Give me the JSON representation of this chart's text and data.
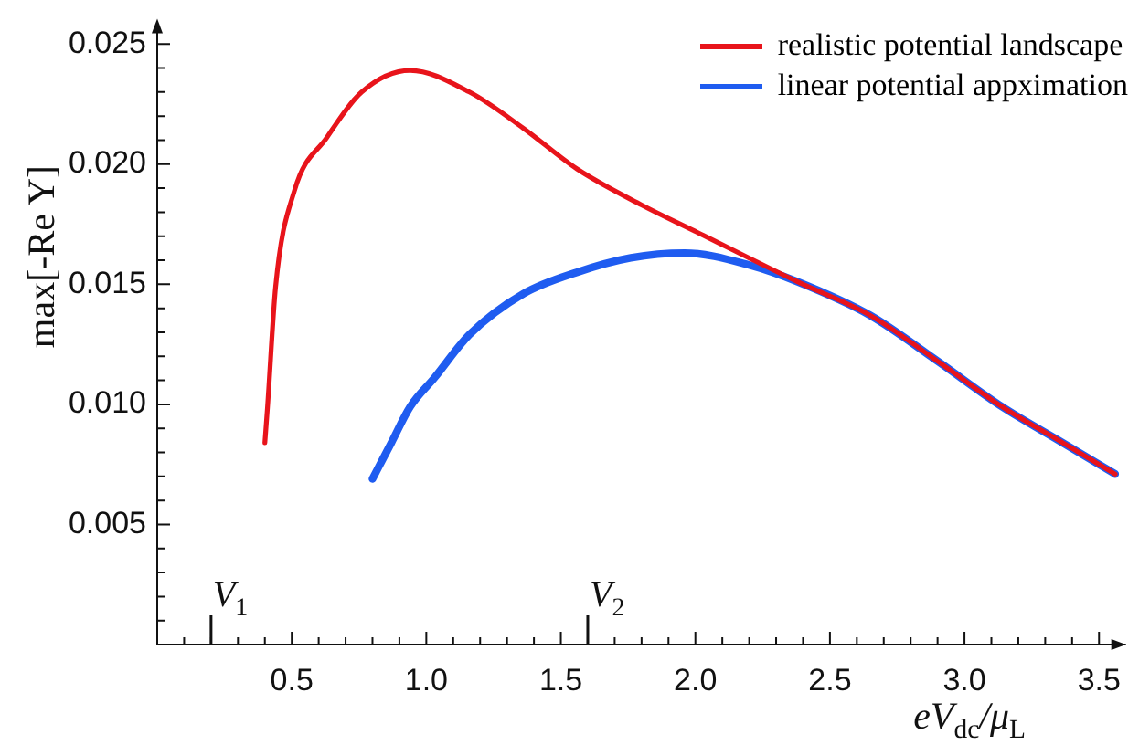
{
  "chart_data": {
    "type": "line",
    "xlabel": "eV$_{dc}$/μ$_{L}$",
    "ylabel": "max[-Re Y]",
    "xlim": [
      0,
      3.6
    ],
    "ylim": [
      0,
      0.0256
    ],
    "xticks": [
      {
        "value": 0.1,
        "label": null
      },
      {
        "value": 0.2,
        "label": null
      },
      {
        "value": 0.3,
        "label": null
      },
      {
        "value": 0.4,
        "label": null
      },
      {
        "value": 0.5,
        "label": "0.5"
      },
      {
        "value": 0.6,
        "label": null
      },
      {
        "value": 0.7,
        "label": null
      },
      {
        "value": 0.8,
        "label": null
      },
      {
        "value": 0.9,
        "label": null
      },
      {
        "value": 1.0,
        "label": "1.0"
      },
      {
        "value": 1.1,
        "label": null
      },
      {
        "value": 1.2,
        "label": null
      },
      {
        "value": 1.3,
        "label": null
      },
      {
        "value": 1.4,
        "label": null
      },
      {
        "value": 1.5,
        "label": "1.5"
      },
      {
        "value": 1.6,
        "label": null
      },
      {
        "value": 1.7,
        "label": null
      },
      {
        "value": 1.8,
        "label": null
      },
      {
        "value": 1.9,
        "label": null
      },
      {
        "value": 2.0,
        "label": "2.0"
      },
      {
        "value": 2.1,
        "label": null
      },
      {
        "value": 2.2,
        "label": null
      },
      {
        "value": 2.3,
        "label": null
      },
      {
        "value": 2.4,
        "label": null
      },
      {
        "value": 2.5,
        "label": "2.5"
      },
      {
        "value": 2.6,
        "label": null
      },
      {
        "value": 2.7,
        "label": null
      },
      {
        "value": 2.8,
        "label": null
      },
      {
        "value": 2.9,
        "label": null
      },
      {
        "value": 3.0,
        "label": "3.0"
      },
      {
        "value": 3.1,
        "label": null
      },
      {
        "value": 3.2,
        "label": null
      },
      {
        "value": 3.3,
        "label": null
      },
      {
        "value": 3.4,
        "label": null
      },
      {
        "value": 3.5,
        "label": "3.5"
      }
    ],
    "yticks": [
      {
        "value": 0.001,
        "label": null
      },
      {
        "value": 0.002,
        "label": null
      },
      {
        "value": 0.003,
        "label": null
      },
      {
        "value": 0.004,
        "label": null
      },
      0.005,
      {
        "value": 0.006,
        "label": null
      },
      {
        "value": 0.007,
        "label": null
      },
      {
        "value": 0.008,
        "label": null
      },
      {
        "value": 0.009,
        "label": null
      },
      {
        "value": 0.01,
        "label": "0.010"
      },
      {
        "value": 0.011,
        "label": null
      },
      {
        "value": 0.012,
        "label": null
      },
      {
        "value": 0.013,
        "label": null
      },
      {
        "value": 0.014,
        "label": null
      },
      0.015,
      {
        "value": 0.016,
        "label": null
      },
      {
        "value": 0.017,
        "label": null
      },
      {
        "value": 0.018,
        "label": null
      },
      {
        "value": 0.019,
        "label": null
      },
      {
        "value": 0.02,
        "label": "0.020"
      },
      {
        "value": 0.021,
        "label": null
      },
      {
        "value": 0.022,
        "label": null
      },
      {
        "value": 0.023,
        "label": null
      },
      {
        "value": 0.024,
        "label": null
      },
      0.025
    ],
    "grid": false,
    "legend": "top right",
    "marker": "none",
    "line_style": "solid",
    "ref_lines": [
      {
        "axis": "x",
        "value": 0.2,
        "label": "V$_{1}$"
      },
      {
        "axis": "x",
        "value": 1.6,
        "label": "V$_{2}$"
      }
    ],
    "series": [
      {
        "name": "realistic potential landscape",
        "color": "#e8141b",
        "x": [
          0.4,
          0.41,
          0.44,
          0.51,
          0.63,
          0.76,
          0.94,
          1.16,
          1.36,
          1.56,
          1.8,
          2.0,
          2.38,
          2.65,
          2.9,
          3.14,
          3.35,
          3.56
        ],
        "values": [
          0.0084,
          0.0099,
          0.0149,
          0.0189,
          0.0211,
          0.023,
          0.0239,
          0.023,
          0.0215,
          0.0198,
          0.0183,
          0.0172,
          0.0151,
          0.0137,
          0.0118,
          0.0099,
          0.0085,
          0.0071
        ]
      },
      {
        "name": "linear potential appximation",
        "color": "#1f5cf0",
        "x": [
          0.8,
          0.87,
          0.94,
          1.03,
          1.16,
          1.36,
          1.56,
          1.76,
          1.96,
          2.2,
          2.38,
          2.65,
          2.9,
          3.14,
          3.35,
          3.56
        ],
        "values": [
          0.0069,
          0.0084,
          0.0099,
          0.0111,
          0.0129,
          0.0146,
          0.0155,
          0.0161,
          0.0163,
          0.0158,
          0.0151,
          0.0137,
          0.0118,
          0.0099,
          0.0085,
          0.0071
        ]
      }
    ]
  }
}
